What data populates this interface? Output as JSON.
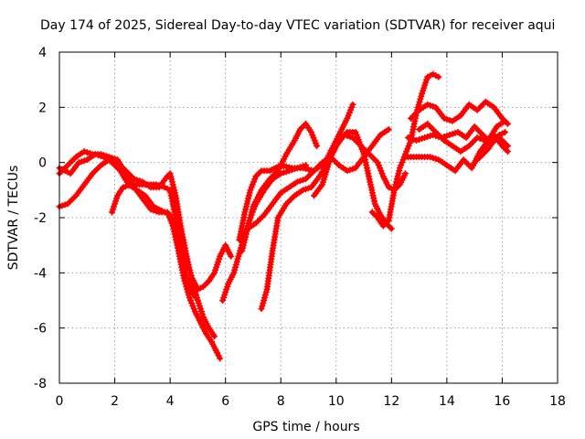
{
  "chart_data": {
    "type": "scatter",
    "title": "Day 174 of 2025, Sidereal Day-to-day VTEC variation (SDTVAR) for receiver aqui",
    "xlabel": "GPS time / hours",
    "ylabel": "SDTVAR / TECUs",
    "xlim": [
      0,
      18
    ],
    "ylim": [
      -8,
      4
    ],
    "xticks": [
      "0",
      "2",
      "4",
      "6",
      "8",
      "10",
      "12",
      "14",
      "16",
      "18"
    ],
    "yticks": [
      "4",
      "2",
      "0",
      "-2",
      "-4",
      "-6",
      "-8"
    ],
    "grid": true,
    "marker": "plus",
    "color": "#ff0000",
    "series": [
      {
        "name": "track-1",
        "x": [
          0,
          0.3,
          0.6,
          0.9,
          1.2,
          1.5,
          1.8,
          2.1,
          2.4,
          2.7,
          3.0,
          3.3,
          3.6,
          3.9,
          4.1,
          4.3,
          4.5,
          4.7,
          4.9,
          5.1,
          5.3,
          5.5,
          5.7,
          5.8
        ],
        "y": [
          -0.4,
          -0.1,
          0.2,
          0.4,
          0.3,
          0.3,
          0.2,
          0.1,
          -0.4,
          -0.9,
          -1.3,
          -1.7,
          -1.8,
          -1.8,
          -2.3,
          -3.2,
          -4.2,
          -4.9,
          -5.4,
          -5.8,
          -6.2,
          -6.5,
          -6.9,
          -7.1
        ]
      },
      {
        "name": "track-2",
        "x": [
          0,
          0.3,
          0.6,
          0.9,
          1.2,
          1.5,
          1.8,
          2.1,
          2.4,
          2.7,
          3.0,
          3.3,
          3.6,
          3.9,
          4.0,
          4.2,
          4.4,
          4.6,
          4.8,
          5.0,
          5.2,
          5.4,
          5.6
        ],
        "y": [
          -1.6,
          -1.5,
          -1.2,
          -0.8,
          -0.4,
          -0.1,
          0.1,
          0.0,
          -0.3,
          -0.6,
          -0.7,
          -0.9,
          -0.9,
          -0.5,
          -0.4,
          -1.2,
          -2.4,
          -3.4,
          -4.3,
          -5.0,
          -5.6,
          -6.0,
          -6.3
        ]
      },
      {
        "name": "track-3",
        "x": [
          0,
          0.2,
          0.4,
          0.7,
          1.0,
          1.3,
          1.6,
          1.9,
          2.2,
          2.5,
          2.8,
          3.1,
          3.4,
          3.6,
          3.8,
          4.0,
          4.2,
          4.4,
          4.6,
          4.8,
          5.0
        ],
        "y": [
          -0.2,
          -0.3,
          -0.4,
          0.0,
          0.1,
          0.3,
          0.2,
          0.0,
          -0.3,
          -0.8,
          -1.0,
          -1.2,
          -1.6,
          -1.7,
          -1.8,
          -1.9,
          -2.6,
          -3.4,
          -4.2,
          -4.7,
          -5.0
        ]
      },
      {
        "name": "track-4",
        "x": [
          1.9,
          2.1,
          2.3,
          2.6,
          2.9,
          3.2,
          3.5,
          3.8,
          4.0,
          4.2,
          4.4,
          4.6,
          4.8,
          5.0,
          5.2,
          5.4,
          5.6,
          5.8,
          6.0,
          6.2
        ],
        "y": [
          -1.8,
          -1.2,
          -0.9,
          -0.8,
          -0.8,
          -0.8,
          -0.8,
          -0.9,
          -1.0,
          -2.0,
          -2.9,
          -3.6,
          -4.2,
          -4.6,
          -4.5,
          -4.3,
          -4.0,
          -3.4,
          -3.0,
          -3.4
        ]
      },
      {
        "name": "track-5",
        "x": [
          5.9,
          6.1,
          6.3,
          6.5,
          6.7,
          6.9,
          7.1,
          7.4,
          7.7,
          8.0,
          8.3,
          8.6,
          8.9
        ],
        "y": [
          -5.0,
          -4.4,
          -4.0,
          -3.3,
          -2.6,
          -2.0,
          -1.5,
          -1.0,
          -0.6,
          -0.4,
          -0.3,
          -0.2,
          -0.1
        ]
      },
      {
        "name": "track-6",
        "x": [
          6.5,
          6.7,
          6.9,
          7.1,
          7.3,
          7.6,
          8.0,
          8.4,
          8.8,
          9.2,
          9.6,
          9.9,
          10.2,
          10.4,
          10.6
        ],
        "y": [
          -2.8,
          -1.8,
          -1.0,
          -0.5,
          -0.3,
          -0.3,
          -0.1,
          -0.2,
          -0.2,
          -0.3,
          0.0,
          0.6,
          1.2,
          1.6,
          2.1
        ]
      },
      {
        "name": "track-7",
        "x": [
          6.6,
          6.8,
          7.0,
          7.3,
          7.6,
          7.9,
          8.2,
          8.5,
          8.7,
          8.9,
          9.1,
          9.3
        ],
        "y": [
          -3.2,
          -2.4,
          -1.6,
          -1.0,
          -0.6,
          -0.3,
          0.3,
          0.8,
          1.2,
          1.4,
          1.1,
          0.6
        ]
      },
      {
        "name": "track-8",
        "x": [
          7.3,
          7.5,
          7.7,
          7.9,
          8.2,
          8.5,
          8.8,
          9.1,
          9.4,
          9.7,
          10.0,
          10.3,
          10.6,
          10.9,
          11.2,
          11.5,
          11.7,
          11.9,
          12.1,
          12.3,
          12.5
        ],
        "y": [
          -5.3,
          -4.6,
          -3.2,
          -2.0,
          -1.5,
          -1.2,
          -1.0,
          -0.9,
          -0.5,
          0.0,
          0.6,
          1.0,
          0.9,
          0.6,
          0.3,
          0.0,
          -0.5,
          -0.9,
          -1.0,
          -0.8,
          -0.4
        ]
      },
      {
        "name": "track-9",
        "x": [
          6.8,
          7.1,
          7.4,
          7.7,
          8.0,
          8.3,
          8.6,
          8.9,
          9.2,
          9.5,
          9.8,
          10.1,
          10.4,
          10.7,
          11.0,
          11.3,
          11.6,
          11.9
        ],
        "y": [
          -2.4,
          -2.2,
          -1.9,
          -1.5,
          -1.1,
          -0.9,
          -0.7,
          -0.6,
          -0.3,
          0.0,
          0.2,
          -0.1,
          -0.3,
          -0.2,
          0.2,
          0.6,
          1.0,
          1.2
        ]
      },
      {
        "name": "track-10",
        "x": [
          9.2,
          9.5,
          9.8,
          10.1,
          10.4,
          10.7,
          11.0,
          11.2,
          11.4,
          11.6,
          11.8,
          12.0
        ],
        "y": [
          -1.2,
          -0.8,
          0.2,
          0.8,
          1.1,
          1.1,
          0.3,
          -0.6,
          -1.5,
          -1.9,
          -2.2,
          -2.4
        ]
      },
      {
        "name": "track-11",
        "x": [
          11.3,
          11.5,
          11.7,
          11.9,
          12.1,
          12.3,
          12.5,
          12.7,
          12.9,
          13.1,
          13.3,
          13.5,
          13.7
        ],
        "y": [
          -1.8,
          -2.0,
          -2.3,
          -2.1,
          -1.0,
          -0.2,
          0.3,
          0.8,
          1.8,
          2.5,
          3.1,
          3.2,
          3.1
        ]
      },
      {
        "name": "track-12",
        "x": [
          12.7,
          13.0,
          13.3,
          13.6,
          13.9,
          14.2,
          14.5,
          14.8,
          15.1,
          15.4,
          15.7,
          16.0,
          16.2
        ],
        "y": [
          1.6,
          1.9,
          2.1,
          2.0,
          1.6,
          1.5,
          1.7,
          2.1,
          1.9,
          2.2,
          2.0,
          1.6,
          1.4
        ]
      },
      {
        "name": "track-13",
        "x": [
          12.6,
          12.9,
          13.2,
          13.5,
          13.8,
          14.1,
          14.4,
          14.7,
          15.0,
          15.3,
          15.6,
          15.9,
          16.2
        ],
        "y": [
          0.9,
          0.8,
          0.9,
          1.0,
          0.9,
          1.0,
          1.1,
          0.9,
          1.3,
          1.0,
          0.7,
          0.9,
          0.6
        ]
      },
      {
        "name": "track-14",
        "x": [
          12.5,
          12.8,
          13.1,
          13.4,
          13.7,
          14.0,
          14.3,
          14.6,
          14.9,
          15.2,
          15.5,
          15.8,
          16.1
        ],
        "y": [
          0.2,
          0.2,
          0.2,
          0.2,
          0.1,
          -0.1,
          -0.3,
          0.1,
          -0.2,
          0.4,
          0.8,
          1.3,
          1.5
        ]
      },
      {
        "name": "track-15",
        "x": [
          13.0,
          13.3,
          13.6,
          13.9,
          14.2,
          14.5,
          14.8,
          15.1,
          15.4,
          15.7,
          16.0,
          16.2
        ],
        "y": [
          1.2,
          1.4,
          1.1,
          0.8,
          0.6,
          0.4,
          0.6,
          0.9,
          0.8,
          1.0,
          0.6,
          0.4
        ]
      },
      {
        "name": "track-16",
        "x": [
          15.1,
          15.3,
          15.5,
          15.7,
          15.9,
          16.1
        ],
        "y": [
          0.1,
          0.3,
          0.5,
          0.8,
          1.0,
          1.1
        ]
      }
    ]
  }
}
